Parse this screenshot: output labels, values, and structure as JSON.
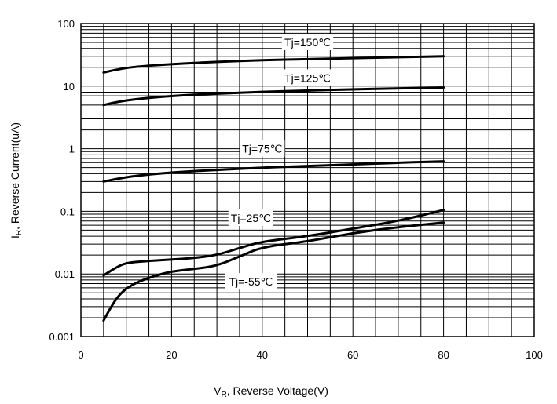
{
  "chart_data": {
    "type": "line",
    "xlabel_main": "V",
    "xlabel_sub": "R",
    "xlabel_rest": ", Reverse  Voltage(V)",
    "ylabel_main": "I",
    "ylabel_sub": "R",
    "ylabel_rest": ", Reverse  Current(uA)",
    "xlim": [
      0,
      100
    ],
    "ylim": [
      0.001,
      100
    ],
    "y_scale": "log",
    "grid": true,
    "x_ticks": [
      0,
      20,
      40,
      60,
      80,
      100
    ],
    "x_tick_labels": [
      "0",
      "20",
      "40",
      "60",
      "80",
      "100"
    ],
    "y_ticks": [
      0.001,
      0.01,
      0.1,
      1,
      10,
      100
    ],
    "y_tick_labels": [
      "0.001",
      "0.01",
      "0.1",
      "1",
      "10",
      "100"
    ],
    "series": [
      {
        "name": "Tj=150℃",
        "x": [
          5,
          8,
          12,
          20,
          30,
          40,
          50,
          60,
          70,
          80
        ],
        "y": [
          16.5,
          18.5,
          20.5,
          22.5,
          24.5,
          26,
          27,
          28,
          29,
          30
        ]
      },
      {
        "name": "Tj=125℃",
        "x": [
          5,
          8,
          12,
          20,
          30,
          40,
          50,
          60,
          70,
          80
        ],
        "y": [
          5,
          5.6,
          6.2,
          7,
          7.6,
          8.1,
          8.5,
          8.9,
          9.2,
          9.5
        ]
      },
      {
        "name": "Tj=75℃",
        "x": [
          5,
          8,
          12,
          20,
          30,
          40,
          50,
          60,
          70,
          80
        ],
        "y": [
          0.3,
          0.33,
          0.37,
          0.42,
          0.46,
          0.5,
          0.53,
          0.56,
          0.6,
          0.63
        ]
      },
      {
        "name": "Tj=25℃",
        "x": [
          5,
          8,
          10,
          14,
          20,
          25,
          30,
          35,
          40,
          50,
          60,
          70,
          80
        ],
        "y": [
          0.0095,
          0.013,
          0.015,
          0.016,
          0.017,
          0.018,
          0.02,
          0.026,
          0.033,
          0.04,
          0.053,
          0.07,
          0.105
        ]
      },
      {
        "name": "Tj=-55℃",
        "x": [
          5,
          7,
          9,
          12,
          16,
          20,
          25,
          30,
          35,
          40,
          50,
          60,
          70,
          80
        ],
        "y": [
          0.0018,
          0.0033,
          0.0052,
          0.0072,
          0.0092,
          0.011,
          0.012,
          0.0135,
          0.019,
          0.027,
          0.033,
          0.045,
          0.056,
          0.066
        ]
      }
    ]
  }
}
